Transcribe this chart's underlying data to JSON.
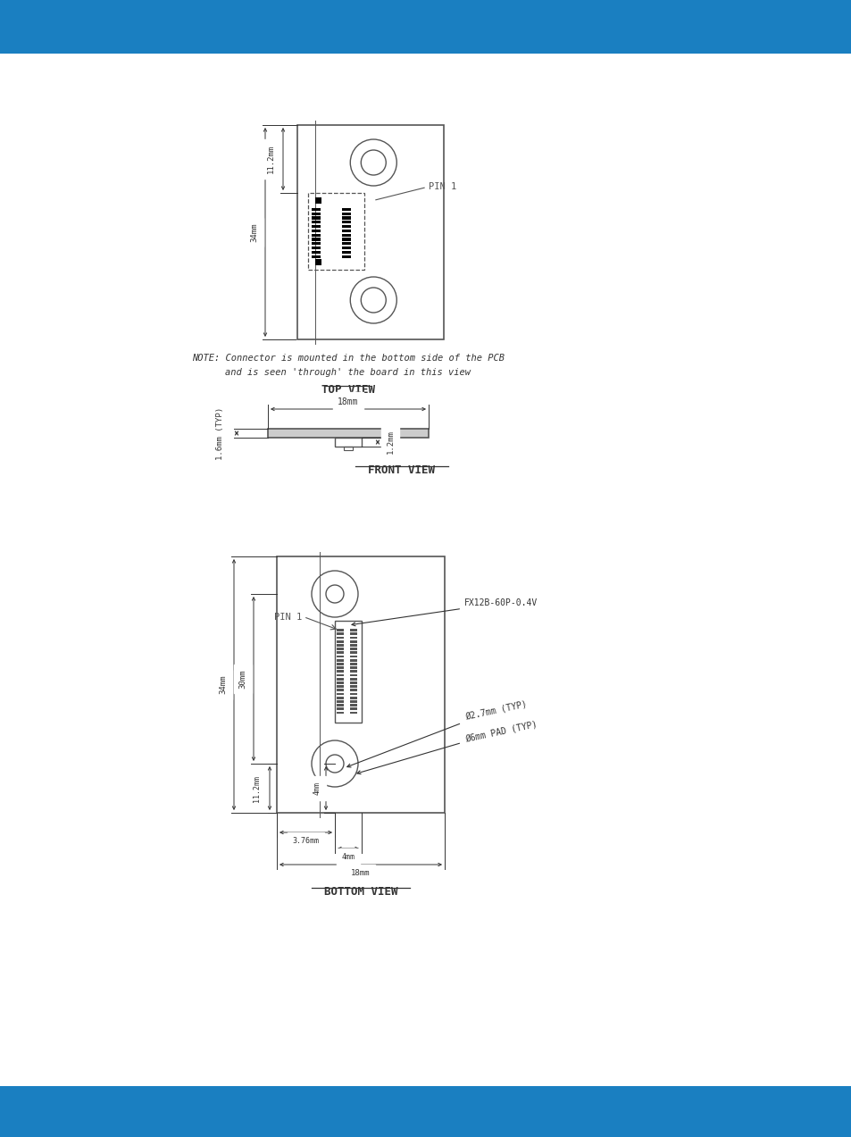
{
  "bg_color": "#ffffff",
  "header_color": "#1a7fc1",
  "footer_color": "#1a7fc1",
  "line_color": "#555555",
  "dim_color": "#333333",
  "note_text_1": "NOTE: Connector is mounted in the bottom side of the PCB",
  "note_text_2": "and is seen 'through' the board in this view",
  "top_view_label": "TOP VIEW",
  "front_view_label": "FRONT VIEW",
  "bottom_view_label": "BOTTOM VIEW",
  "pin1_label": "PIN 1",
  "fx_label": "FX12B-60P-0.4V",
  "dia_label1": "Ø2.7mm (TYP)",
  "dia_label2": "Ø6mm PAD (TYP)",
  "dim_112": "11.2mm",
  "dim_34": "34mm",
  "dim_30": "30mm",
  "dim_18": "18mm",
  "dim_16typ": "1.6mm (TYP)",
  "dim_12": "1.2mm",
  "dim_376": "3.76mm",
  "dim_4": "4mm"
}
